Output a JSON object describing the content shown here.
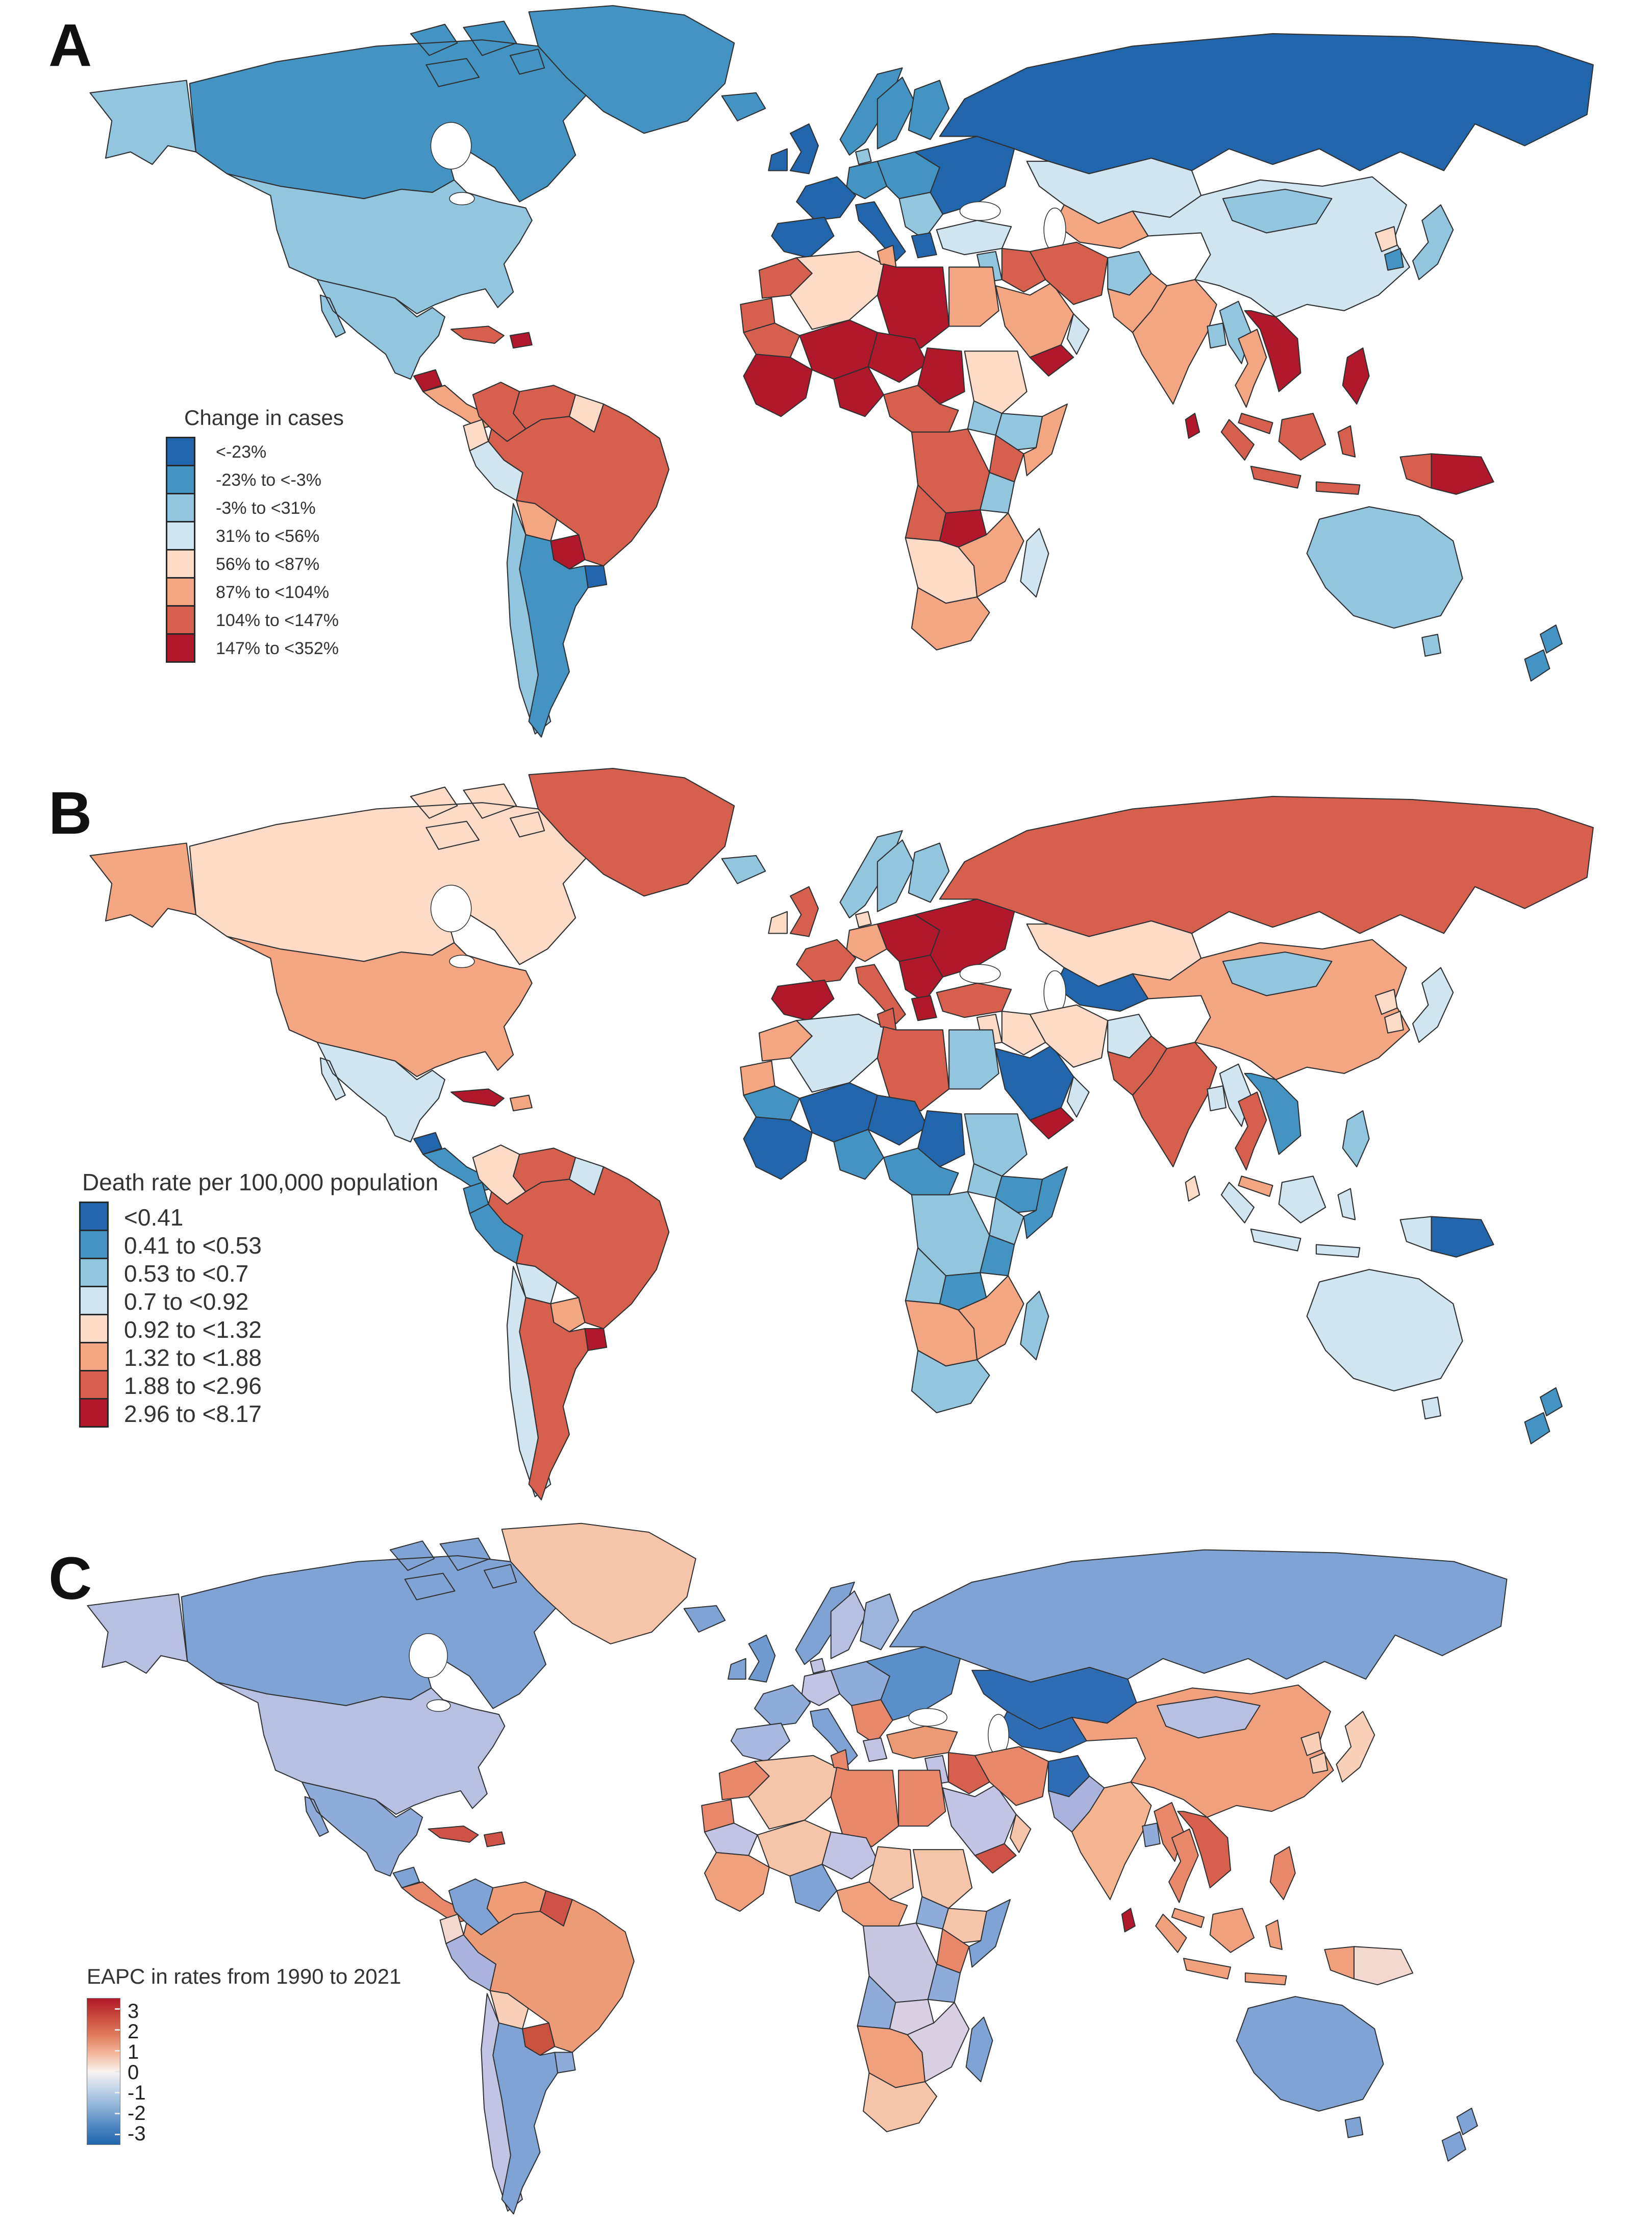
{
  "figure": {
    "type": "choropleth-world-maps",
    "panel_count": 3
  },
  "panels": [
    {
      "label": "A",
      "legend": {
        "title": "Change in cases",
        "items": [
          {
            "label": "<-23%",
            "color": "#2166ac"
          },
          {
            "label": "-23% to <-3%",
            "color": "#4393c3"
          },
          {
            "label": "-3% to <31%",
            "color": "#92c5de"
          },
          {
            "label": "31% to <56%",
            "color": "#d1e5f0"
          },
          {
            "label": "56% to <87%",
            "color": "#fddbc7"
          },
          {
            "label": "87% to <104%",
            "color": "#f4a582"
          },
          {
            "label": "104% to <147%",
            "color": "#d6604d"
          },
          {
            "label": "147% to <352%",
            "color": "#b2182b"
          }
        ]
      },
      "regions": {
        "alaska": "#92c5de",
        "canada": "#4393c3",
        "greenland": "#4393c3",
        "usa": "#92c5de",
        "mexico": "#92c5de",
        "guatemala": "#b2182b",
        "central-america": "#f4a582",
        "cuba": "#d6604d",
        "hispaniola": "#b2182b",
        "colombia": "#d6604d",
        "venezuela": "#d6604d",
        "guyanas": "#fddbc7",
        "ecuador": "#fddbc7",
        "peru": "#d1e5f0",
        "brazil": "#d6604d",
        "bolivia": "#f4a582",
        "paraguay": "#b2182b",
        "uruguay": "#2166ac",
        "chile": "#92c5de",
        "argentina": "#4393c3",
        "iceland": "#4393c3",
        "ireland": "#2166ac",
        "uk": "#2166ac",
        "norway": "#4393c3",
        "sweden": "#4393c3",
        "finland": "#4393c3",
        "denmark": "#92c5de",
        "germany": "#4393c3",
        "france": "#2166ac",
        "iberia": "#2166ac",
        "italy": "#2166ac",
        "central-europe": "#4393c3",
        "balkans": "#92c5de",
        "greece": "#2166ac",
        "eastern-europe": "#2166ac",
        "russia": "#2166ac",
        "kazakhstan": "#d1e5f0",
        "central-asia": "#f4a582",
        "turkey": "#d1e5f0",
        "levant": "#92c5de",
        "iraq": "#d6604d",
        "saudi": "#f4a582",
        "yemen": "#b2182b",
        "oman": "#d1e5f0",
        "iran": "#d6604d",
        "afghanistan": "#92c5de",
        "pakistan": "#f4a582",
        "india": "#f4a582",
        "bangladesh": "#92c5de",
        "sri-lanka": "#b2182b",
        "china": "#d1e5f0",
        "mongolia": "#92c5de",
        "n-korea": "#fddbc7",
        "s-korea": "#4393c3",
        "japan": "#92c5de",
        "myanmar": "#92c5de",
        "thailand": "#f4a582",
        "indochina": "#b2182b",
        "malaysia": "#d6604d",
        "indonesia": "#d6604d",
        "png": "#b2182b",
        "philippines": "#b2182b",
        "australia": "#92c5de",
        "new-zealand": "#4393c3",
        "morocco": "#d6604d",
        "algeria": "#fddbc7",
        "tunisia": "#f4a582",
        "libya": "#b2182b",
        "egypt": "#f4a582",
        "mauritania": "#d6604d",
        "mali": "#b2182b",
        "niger": "#b2182b",
        "chad": "#b2182b",
        "sudan": "#fddbc7",
        "west-africa": "#b2182b",
        "nigeria": "#b2182b",
        "central-africa": "#d6604d",
        "south-sudan": "#92c5de",
        "ethiopia": "#92c5de",
        "somalia": "#f4a582",
        "kenya": "#d6604d",
        "drc": "#d6604d",
        "tanzania": "#92c5de",
        "angola": "#d6604d",
        "zambia": "#b2182b",
        "mozambique-zimbabwe": "#f4a582",
        "namibia-botswana": "#fddbc7",
        "south-africa": "#f4a582",
        "madagascar": "#d1e5f0"
      }
    },
    {
      "label": "B",
      "legend": {
        "title": "Death rate per 100,000 population",
        "items": [
          {
            "label": "<0.41",
            "color": "#2166ac"
          },
          {
            "label": "0.41 to <0.53",
            "color": "#4393c3"
          },
          {
            "label": "0.53 to <0.7",
            "color": "#92c5de"
          },
          {
            "label": "0.7 to <0.92",
            "color": "#d1e5f0"
          },
          {
            "label": "0.92 to <1.32",
            "color": "#fddbc7"
          },
          {
            "label": "1.32 to <1.88",
            "color": "#f4a582"
          },
          {
            "label": "1.88 to <2.96",
            "color": "#d6604d"
          },
          {
            "label": "2.96 to <8.17",
            "color": "#b2182b"
          }
        ]
      },
      "regions": {
        "alaska": "#f4a582",
        "canada": "#fddbc7",
        "greenland": "#d6604d",
        "usa": "#f4a582",
        "mexico": "#d1e5f0",
        "guatemala": "#2166ac",
        "central-america": "#4393c3",
        "cuba": "#b2182b",
        "hispaniola": "#f4a582",
        "colombia": "#fddbc7",
        "venezuela": "#d6604d",
        "guyanas": "#d1e5f0",
        "ecuador": "#4393c3",
        "peru": "#4393c3",
        "brazil": "#d6604d",
        "bolivia": "#d1e5f0",
        "paraguay": "#f4a582",
        "uruguay": "#b2182b",
        "chile": "#d1e5f0",
        "argentina": "#d6604d",
        "iceland": "#92c5de",
        "ireland": "#fddbc7",
        "uk": "#d6604d",
        "norway": "#92c5de",
        "sweden": "#92c5de",
        "finland": "#92c5de",
        "denmark": "#fddbc7",
        "germany": "#f4a582",
        "france": "#d6604d",
        "iberia": "#b2182b",
        "italy": "#d6604d",
        "central-europe": "#b2182b",
        "balkans": "#b2182b",
        "greece": "#b2182b",
        "eastern-europe": "#b2182b",
        "russia": "#d6604d",
        "kazakhstan": "#fddbc7",
        "central-asia": "#2166ac",
        "turkey": "#d6604d",
        "levant": "#fddbc7",
        "iraq": "#fddbc7",
        "saudi": "#2166ac",
        "yemen": "#b2182b",
        "oman": "#d1e5f0",
        "iran": "#fddbc7",
        "afghanistan": "#d1e5f0",
        "pakistan": "#d6604d",
        "india": "#d6604d",
        "bangladesh": "#d1e5f0",
        "sri-lanka": "#fddbc7",
        "china": "#f4a582",
        "mongolia": "#92c5de",
        "n-korea": "#fddbc7",
        "s-korea": "#fddbc7",
        "japan": "#d1e5f0",
        "myanmar": "#d1e5f0",
        "thailand": "#d6604d",
        "indochina": "#4393c3",
        "malaysia": "#f4a582",
        "indonesia": "#d1e5f0",
        "png": "#2166ac",
        "philippines": "#92c5de",
        "australia": "#d1e5f0",
        "new-zealand": "#4393c3",
        "morocco": "#f4a582",
        "algeria": "#d1e5f0",
        "tunisia": "#d6604d",
        "libya": "#d6604d",
        "egypt": "#92c5de",
        "mauritania": "#4393c3",
        "mali": "#2166ac",
        "niger": "#2166ac",
        "chad": "#2166ac",
        "sudan": "#92c5de",
        "west-africa": "#2166ac",
        "nigeria": "#4393c3",
        "central-africa": "#4393c3",
        "south-sudan": "#92c5de",
        "ethiopia": "#4393c3",
        "somalia": "#4393c3",
        "kenya": "#92c5de",
        "drc": "#92c5de",
        "tanzania": "#4393c3",
        "angola": "#92c5de",
        "zambia": "#4393c3",
        "mozambique-zimbabwe": "#f4a582",
        "namibia-botswana": "#f4a582",
        "south-africa": "#92c5de",
        "madagascar": "#92c5de"
      }
    },
    {
      "label": "C",
      "legend": {
        "title": "EAPC in rates from 1990 to 2021",
        "colorbar": {
          "ticks": [
            "3",
            "2",
            "1",
            "0",
            "-1",
            "-2",
            "-3"
          ],
          "stops": [
            "#b2182b",
            "#c94a3c",
            "#e07b5c",
            "#f3b69a",
            "#f7f2ef",
            "#c2d4e8",
            "#89b0d6",
            "#4f87c1",
            "#2166ac"
          ],
          "range_top": 3,
          "range_bottom": -3
        }
      },
      "regions": {
        "alaska": "#b7c0e0",
        "canada": "#7ea3d4",
        "greenland": "#f6c4a8",
        "usa": "#b7c0e0",
        "mexico": "#8fabd9",
        "guatemala": "#7ea3d4",
        "central-america": "#e8876a",
        "cuba": "#cf5246",
        "hispaniola": "#cf5246",
        "colombia": "#7ea3d4",
        "venezuela": "#f09c77",
        "guyanas": "#cf5246",
        "ecuador": "#f3d8d0",
        "peru": "#aab3dd",
        "brazil": "#ed9b77",
        "bolivia": "#f8d0b8",
        "paraguay": "#c9523f",
        "uruguay": "#8fabd9",
        "chile": "#c3c4e3",
        "argentina": "#7ea3d4",
        "iceland": "#7ea3d4",
        "ireland": "#7ea3d4",
        "uk": "#6f9bd0",
        "norway": "#7ea3d4",
        "sweden": "#b7c0e0",
        "finland": "#9db4dc",
        "denmark": "#c3c4e3",
        "germany": "#c3c4e3",
        "france": "#8fabd9",
        "iberia": "#a9b8de",
        "italy": "#7ea3d4",
        "central-europe": "#8fabd9",
        "balkans": "#e8876a",
        "greece": "#c3c4e3",
        "eastern-europe": "#5b8fc9",
        "russia": "#7ea3d4",
        "kazakhstan": "#2e6db4",
        "central-asia": "#2e6db4",
        "turkey": "#ec9a76",
        "levant": "#c3c4e3",
        "iraq": "#d6604d",
        "saudi": "#c3c4e3",
        "yemen": "#cf5246",
        "oman": "#f6c4a8",
        "iran": "#e8876a",
        "afghanistan": "#2e6db4",
        "pakistan": "#aab3dd",
        "india": "#f5b490",
        "bangladesh": "#8fabd9",
        "sri-lanka": "#b2182b",
        "china": "#f0a07c",
        "mongolia": "#b7c0e0",
        "n-korea": "#f8d0b8",
        "s-korea": "#f8d0b8",
        "japan": "#f8d0b8",
        "myanmar": "#e8876a",
        "thailand": "#e8876a",
        "indochina": "#d6604d",
        "malaysia": "#f0a07c",
        "indonesia": "#f0a07c",
        "png": "#f3d8d0",
        "philippines": "#e8876a",
        "australia": "#7ea3d4",
        "new-zealand": "#7ea3d4",
        "morocco": "#e8876a",
        "algeria": "#f6c4a8",
        "tunisia": "#e8876a",
        "libya": "#e8876a",
        "egypt": "#e8876a",
        "mauritania": "#c3c4e3",
        "mali": "#f6c4a8",
        "niger": "#c3c4e3",
        "chad": "#f6c4a8",
        "sudan": "#f6c4a8",
        "west-africa": "#f0a07c",
        "nigeria": "#7ea3d4",
        "central-africa": "#f0a07c",
        "south-sudan": "#8fabd9",
        "ethiopia": "#f6c4a8",
        "somalia": "#7ea3d4",
        "kenya": "#e8876a",
        "drc": "#c9c6e2",
        "tanzania": "#8fabd9",
        "angola": "#8fabd9",
        "zambia": "#d9cfe2",
        "mozambique-zimbabwe": "#d9cfe2",
        "namibia-botswana": "#f0a07c",
        "south-africa": "#f6c4a8",
        "madagascar": "#7ea3d4"
      }
    }
  ]
}
